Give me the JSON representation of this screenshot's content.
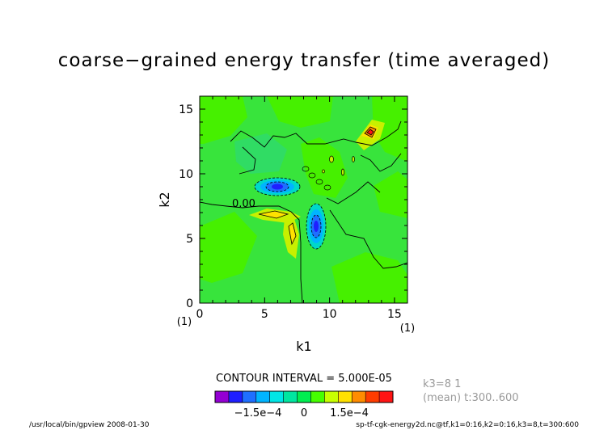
{
  "chart_data": {
    "type": "heatmap",
    "title": "coarse−grained energy transfer (time averaged)",
    "xlabel": "k1",
    "ylabel": "k2",
    "x_range": [
      0,
      16
    ],
    "y_range": [
      0,
      16
    ],
    "x_ticks": [
      {
        "value": 0,
        "label": "0"
      },
      {
        "value": 5,
        "label": "5"
      },
      {
        "value": 10,
        "label": "10"
      },
      {
        "value": 15,
        "label": "15"
      }
    ],
    "y_ticks": [
      {
        "value": 0,
        "label": "0"
      },
      {
        "value": 5,
        "label": "5"
      },
      {
        "value": 10,
        "label": "10"
      },
      {
        "value": 15,
        "label": "15"
      }
    ],
    "x_index_label": "(1)",
    "x_end_index_label": "(1)",
    "contour_label": "0.00",
    "contour_interval_text": "CONTOUR INTERVAL = 5.000E-05",
    "colorbar": {
      "colors": [
        "#9400d3",
        "#1f1fff",
        "#1f6fff",
        "#00b4ff",
        "#00e6e6",
        "#00e6a0",
        "#00ee50",
        "#46ff00",
        "#c8ff00",
        "#ffe100",
        "#ff8c00",
        "#ff3c00",
        "#ff1414"
      ],
      "tick_labels": [
        "−1.5e−4",
        "0",
        "1.5e−4"
      ]
    },
    "features": [
      {
        "type": "negative",
        "k1": 6,
        "k2": 9,
        "label": "blue minimum"
      },
      {
        "type": "negative",
        "k1": 9,
        "k2": 6,
        "label": "blue minimum"
      },
      {
        "type": "positive",
        "k1": 13,
        "k2": 13,
        "label": "red maximum"
      },
      {
        "type": "positive",
        "k1": 6.5,
        "k2": 7,
        "label": "yellow maximum"
      },
      {
        "type": "positive",
        "k1": 7,
        "k2": 5.5,
        "label": "yellow maximum"
      }
    ],
    "side_info": [
      "k3=8 1",
      "(mean) t:300..600"
    ],
    "footer_left": "/usr/local/bin/gpview  2008-01-30",
    "footer_right": "sp-tf-cgk-energy2d.nc@tf,k1=0:16,k2=0:16,k3=8,t=300:600"
  }
}
